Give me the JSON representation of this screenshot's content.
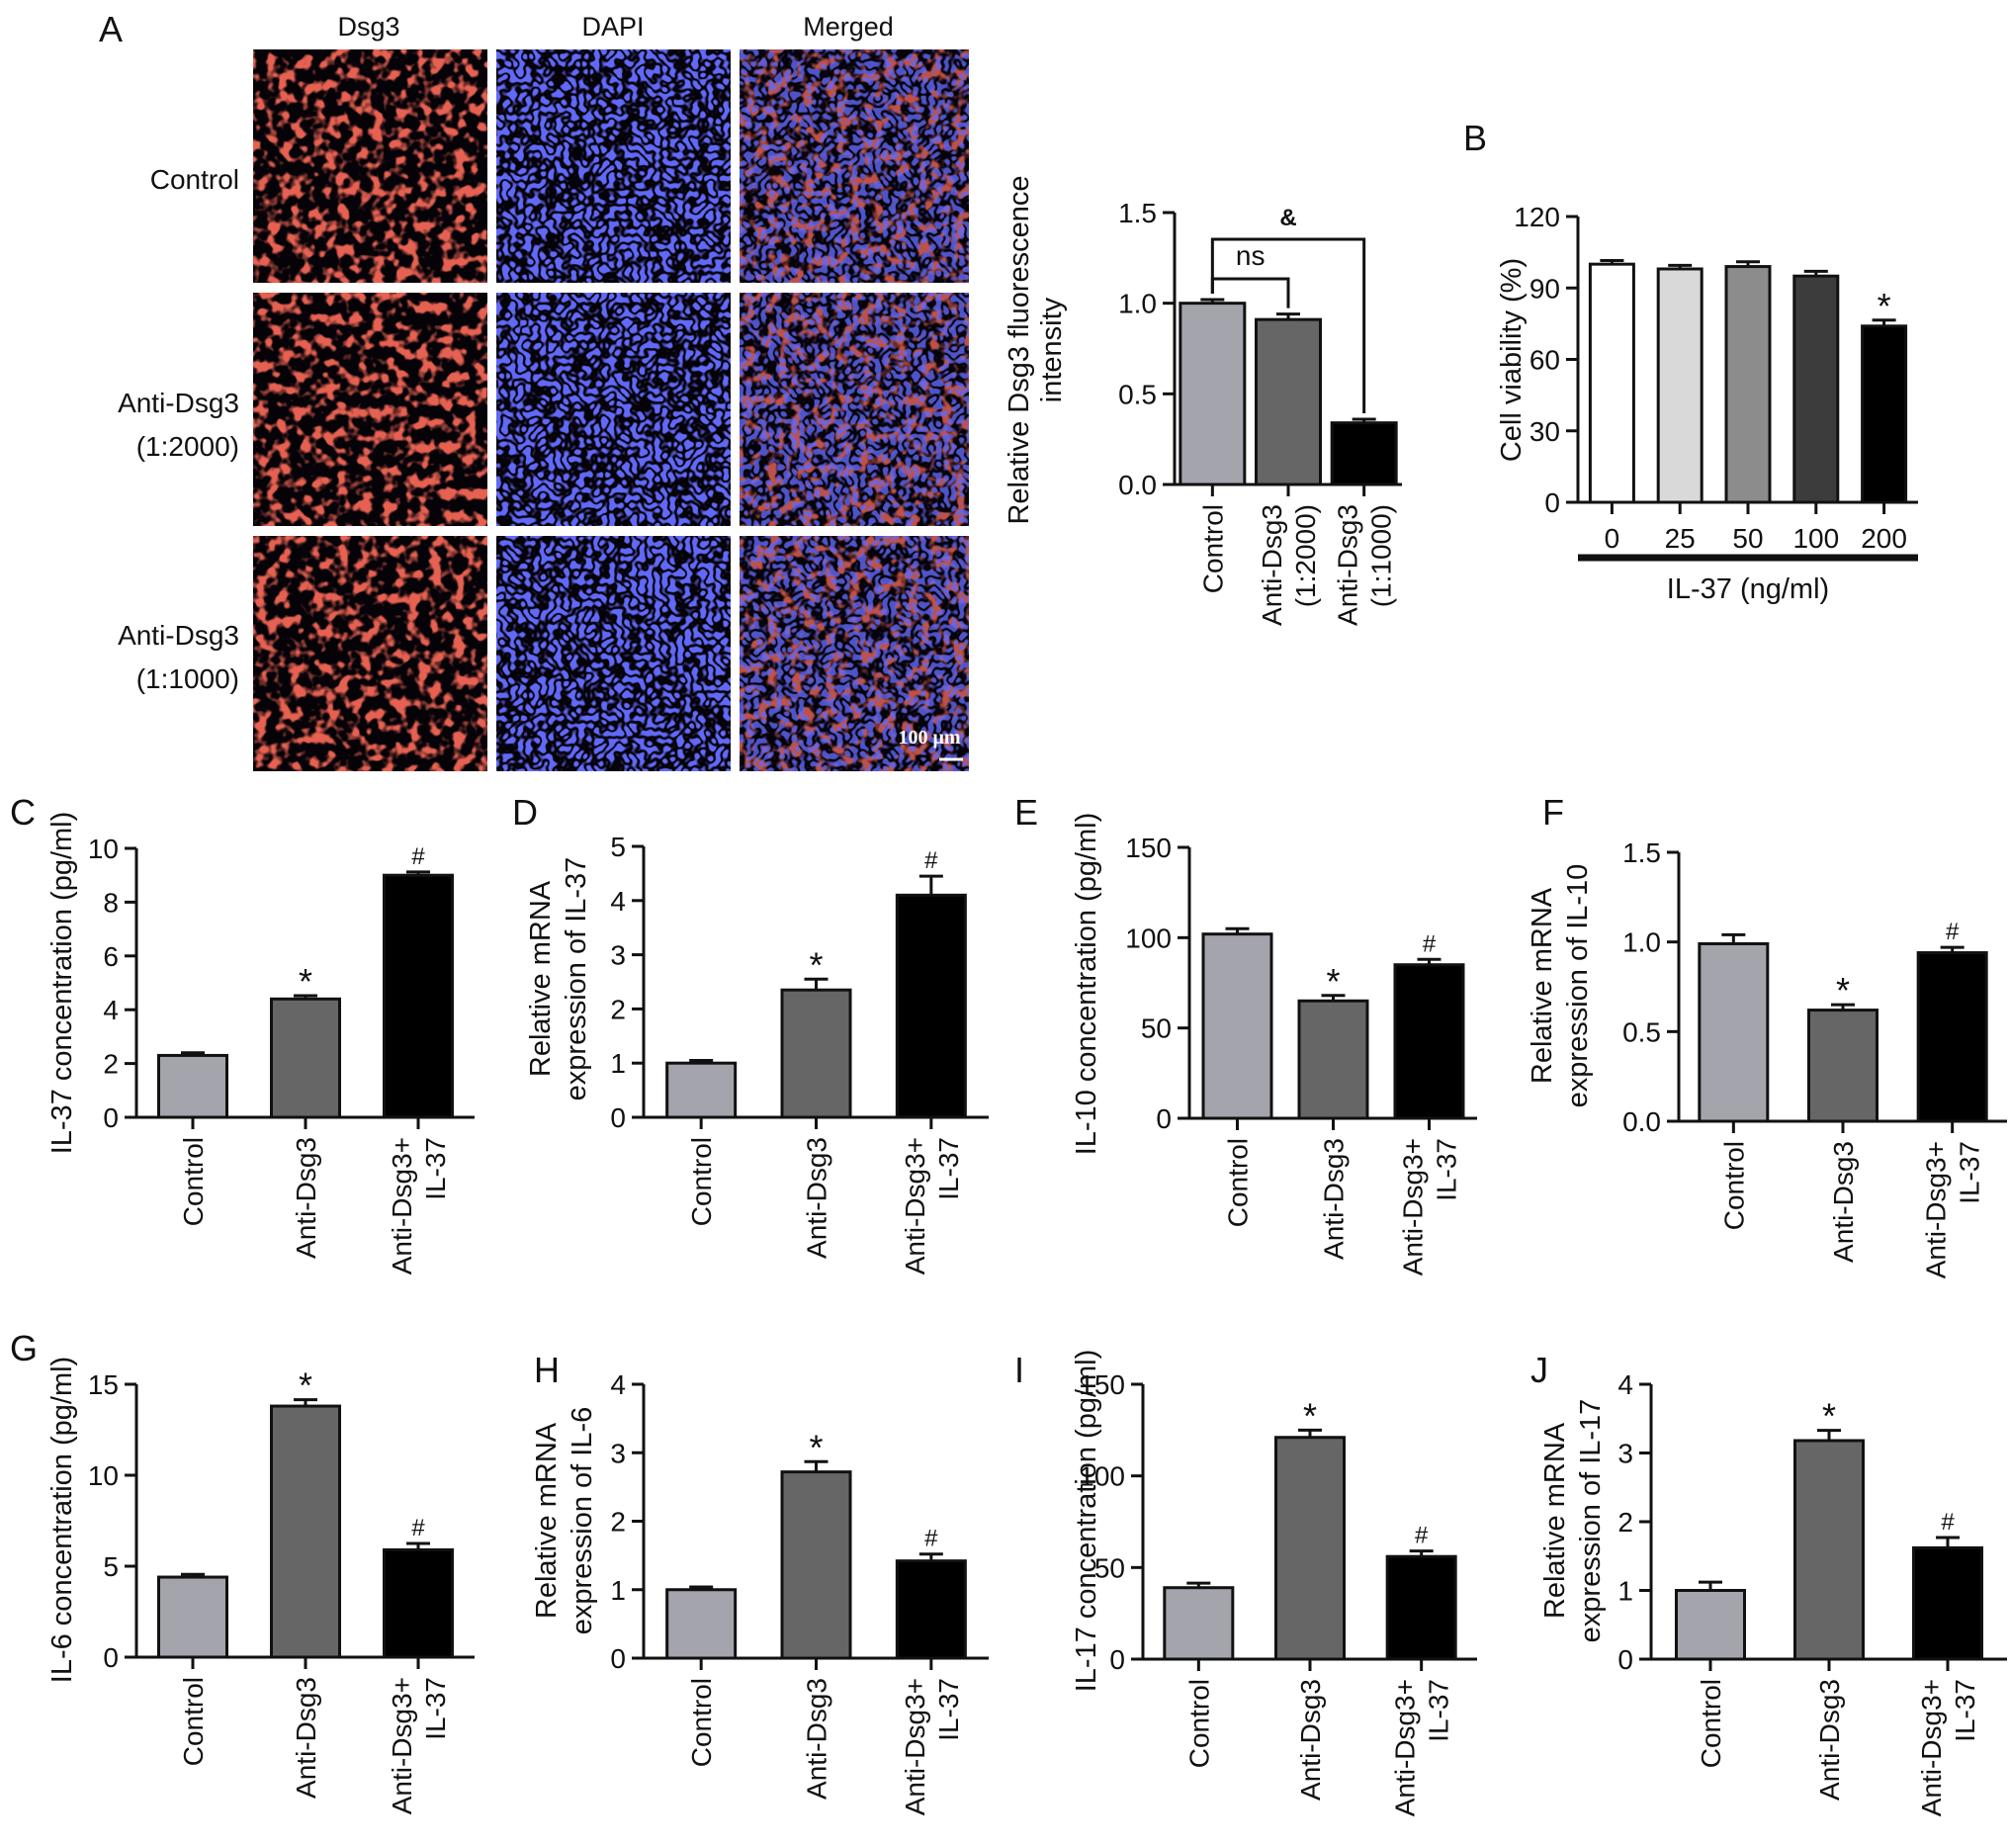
{
  "colors": {
    "control": "#a4a4ac",
    "anti_dsg3": "#666666",
    "anti_dsg3_il37": "#000000",
    "micrograph_red": "#ff2a20",
    "micrograph_blue": "#1a1ee0",
    "micrograph_bg": "#050208"
  },
  "micrographs": {
    "panel_letter": "A",
    "columns": [
      "Dsg3",
      "DAPI",
      "Merged"
    ],
    "rows": [
      {
        "label_lines": [
          "Control"
        ]
      },
      {
        "label_lines": [
          "Anti-Dsg3",
          "(1:2000)"
        ]
      },
      {
        "label_lines": [
          "Anti-Dsg3",
          "(1:1000)"
        ]
      }
    ],
    "scale_bar_label": "100 μm"
  },
  "chart_data": [
    {
      "id": "A-quant",
      "type": "bar",
      "panel_letter": "",
      "categories": [
        [
          "Control"
        ],
        [
          "Anti-Dsg3",
          "(1:2000)"
        ],
        [
          "Anti-Dsg3",
          "(1:1000)"
        ]
      ],
      "values": [
        1.0,
        0.91,
        0.34
      ],
      "errors": [
        0.02,
        0.03,
        0.02
      ],
      "colors": [
        "#a4a4ac",
        "#666666",
        "#000000"
      ],
      "ylabel_lines": [
        "Relative Dsg3 fluorescence",
        "intensity"
      ],
      "ylim": [
        0,
        1.5
      ],
      "yticks": [
        "0.0",
        "0.5",
        "1.0",
        "1.5"
      ],
      "ytick_values": [
        0,
        0.5,
        1.0,
        1.5
      ],
      "markers": [
        "",
        "",
        ""
      ],
      "brackets": [
        {
          "from": 0,
          "to": 1,
          "label": "ns"
        },
        {
          "from": 0,
          "to": 2,
          "label": "&"
        }
      ]
    },
    {
      "id": "B",
      "type": "bar",
      "panel_letter": "B",
      "categories": [
        [
          "0"
        ],
        [
          "25"
        ],
        [
          "50"
        ],
        [
          "100"
        ],
        [
          "200"
        ]
      ],
      "values": [
        100,
        98,
        99,
        95,
        74
      ],
      "errors": [
        1.5,
        1.5,
        2,
        2,
        2.5
      ],
      "colors": [
        "#ffffff",
        "#d9d9d9",
        "#8c8c8c",
        "#3c3c3c",
        "#000000"
      ],
      "ylabel_lines": [
        "Cell viability (%)"
      ],
      "ylim": [
        0,
        120
      ],
      "yticks": [
        "0",
        "30",
        "60",
        "90",
        "120"
      ],
      "ytick_values": [
        0,
        30,
        60,
        90,
        120
      ],
      "markers": [
        "",
        "",
        "",
        "",
        "*"
      ],
      "xgroup_label": "IL-37 (ng/ml)"
    },
    {
      "id": "C",
      "type": "bar",
      "panel_letter": "C",
      "categories": [
        [
          "Control"
        ],
        [
          "Anti-Dsg3"
        ],
        [
          "Anti-Dsg3+",
          "IL-37"
        ]
      ],
      "values": [
        2.3,
        4.4,
        9.0
      ],
      "errors": [
        0.1,
        0.12,
        0.12
      ],
      "colors": [
        "#a4a4ac",
        "#666666",
        "#000000"
      ],
      "ylabel_lines": [
        "IL-37 concentration (pg/ml)"
      ],
      "ylim": [
        0,
        10
      ],
      "yticks": [
        "0",
        "2",
        "4",
        "6",
        "8",
        "10"
      ],
      "ytick_values": [
        0,
        2,
        4,
        6,
        8,
        10
      ],
      "markers": [
        "",
        "*",
        "#"
      ]
    },
    {
      "id": "D",
      "type": "bar",
      "panel_letter": "D",
      "categories": [
        [
          "Control"
        ],
        [
          "Anti-Dsg3"
        ],
        [
          "Anti-Dsg3+",
          "IL-37"
        ]
      ],
      "values": [
        1.0,
        2.35,
        4.1
      ],
      "errors": [
        0.05,
        0.2,
        0.35
      ],
      "colors": [
        "#a4a4ac",
        "#666666",
        "#000000"
      ],
      "ylabel_lines": [
        "Relative mRNA",
        "expression of IL-37"
      ],
      "ylim": [
        0,
        5
      ],
      "yticks": [
        "0",
        "1",
        "2",
        "3",
        "4",
        "5"
      ],
      "ytick_values": [
        0,
        1,
        2,
        3,
        4,
        5
      ],
      "markers": [
        "",
        "*",
        "#"
      ]
    },
    {
      "id": "E",
      "type": "bar",
      "panel_letter": "E",
      "categories": [
        [
          "Control"
        ],
        [
          "Anti-Dsg3"
        ],
        [
          "Anti-Dsg3+",
          "IL-37"
        ]
      ],
      "values": [
        102,
        65,
        85
      ],
      "errors": [
        3,
        3,
        3
      ],
      "colors": [
        "#a4a4ac",
        "#666666",
        "#000000"
      ],
      "ylabel_lines": [
        "IL-10 concentration (pg/ml)"
      ],
      "ylim": [
        0,
        150
      ],
      "yticks": [
        "0",
        "50",
        "100",
        "150"
      ],
      "ytick_values": [
        0,
        50,
        100,
        150
      ],
      "markers": [
        "",
        "*",
        "#"
      ]
    },
    {
      "id": "F",
      "type": "bar",
      "panel_letter": "F",
      "categories": [
        [
          "Control"
        ],
        [
          "Anti-Dsg3"
        ],
        [
          "Anti-Dsg3+",
          "IL-37"
        ]
      ],
      "values": [
        0.99,
        0.62,
        0.94
      ],
      "errors": [
        0.05,
        0.03,
        0.03
      ],
      "colors": [
        "#a4a4ac",
        "#666666",
        "#000000"
      ],
      "ylabel_lines": [
        "Relative mRNA",
        "expression of IL-10"
      ],
      "ylim": [
        0,
        1.5
      ],
      "yticks": [
        "0.0",
        "0.5",
        "1.0",
        "1.5"
      ],
      "ytick_values": [
        0,
        0.5,
        1.0,
        1.5
      ],
      "markers": [
        "",
        "*",
        "#"
      ]
    },
    {
      "id": "G",
      "type": "bar",
      "panel_letter": "G",
      "categories": [
        [
          "Control"
        ],
        [
          "Anti-Dsg3"
        ],
        [
          "Anti-Dsg3+",
          "IL-37"
        ]
      ],
      "values": [
        4.4,
        13.8,
        5.9
      ],
      "errors": [
        0.15,
        0.35,
        0.35
      ],
      "colors": [
        "#a4a4ac",
        "#666666",
        "#000000"
      ],
      "ylabel_lines": [
        "IL-6 concentration (pg/ml)"
      ],
      "ylim": [
        0,
        15
      ],
      "yticks": [
        "0",
        "5",
        "10",
        "15"
      ],
      "ytick_values": [
        0,
        5,
        10,
        15
      ],
      "markers": [
        "",
        "*",
        "#"
      ]
    },
    {
      "id": "H",
      "type": "bar",
      "panel_letter": "H",
      "categories": [
        [
          "Control"
        ],
        [
          "Anti-Dsg3"
        ],
        [
          "Anti-Dsg3+",
          "IL-37"
        ]
      ],
      "values": [
        1.0,
        2.72,
        1.42
      ],
      "errors": [
        0.04,
        0.15,
        0.1
      ],
      "colors": [
        "#a4a4ac",
        "#666666",
        "#000000"
      ],
      "ylabel_lines": [
        "Relative mRNA",
        "expression of IL-6"
      ],
      "ylim": [
        0,
        4
      ],
      "yticks": [
        "0",
        "1",
        "2",
        "3",
        "4"
      ],
      "ytick_values": [
        0,
        1,
        2,
        3,
        4
      ],
      "markers": [
        "",
        "*",
        "#"
      ]
    },
    {
      "id": "I",
      "type": "bar",
      "panel_letter": "I",
      "categories": [
        [
          "Control"
        ],
        [
          "Anti-Dsg3"
        ],
        [
          "Anti-Dsg3+",
          "IL-37"
        ]
      ],
      "values": [
        39,
        121,
        56
      ],
      "errors": [
        2.5,
        4,
        3
      ],
      "colors": [
        "#a4a4ac",
        "#666666",
        "#000000"
      ],
      "ylabel_lines": [
        "IL-17 concentration (pg/ml)"
      ],
      "ylim": [
        0,
        150
      ],
      "yticks": [
        "0",
        "50",
        "100",
        "150"
      ],
      "ytick_values": [
        0,
        50,
        100,
        150
      ],
      "markers": [
        "",
        "*",
        "#"
      ]
    },
    {
      "id": "J",
      "type": "bar",
      "panel_letter": "J",
      "categories": [
        [
          "Control"
        ],
        [
          "Anti-Dsg3"
        ],
        [
          "Anti-Dsg3+",
          "IL-37"
        ]
      ],
      "values": [
        1.0,
        3.18,
        1.62
      ],
      "errors": [
        0.12,
        0.15,
        0.15
      ],
      "colors": [
        "#a4a4ac",
        "#666666",
        "#000000"
      ],
      "ylabel_lines": [
        "Relative mRNA",
        "expression of IL-17"
      ],
      "ylim": [
        0,
        4
      ],
      "yticks": [
        "0",
        "1",
        "2",
        "3",
        "4"
      ],
      "ytick_values": [
        0,
        1,
        2,
        3,
        4
      ],
      "markers": [
        "",
        "*",
        "#"
      ]
    }
  ]
}
